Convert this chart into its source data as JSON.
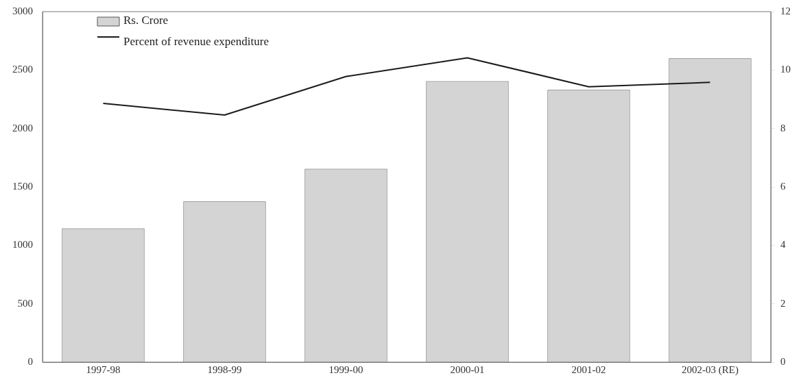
{
  "chart_data": {
    "type": "bar",
    "categories": [
      "1997-98",
      "1998-99",
      "1999-00",
      "2000-01",
      "2001-02",
      "2002-03 (RE)"
    ],
    "series": [
      {
        "name": "Rs. Crore",
        "color": "#d4d4d4",
        "values": [
          1145,
          1375,
          1655,
          2405,
          2330,
          2600
        ]
      },
      {
        "name": "Percent of revenue expenditure",
        "type": "line",
        "axis": "y2",
        "color": "#1a1a1a",
        "values": [
          8.86,
          8.46,
          9.78,
          10.42,
          9.43,
          9.58
        ]
      }
    ],
    "ylim": [
      0,
      3000
    ],
    "yticks": [
      0,
      500,
      1000,
      1500,
      2000,
      2500,
      3000
    ],
    "y2lim": [
      0,
      12
    ],
    "y2ticks": [
      0,
      2,
      4,
      6,
      8,
      10,
      12
    ],
    "grid": false,
    "legend": "top left",
    "marker": "none",
    "line_style": "solid"
  }
}
